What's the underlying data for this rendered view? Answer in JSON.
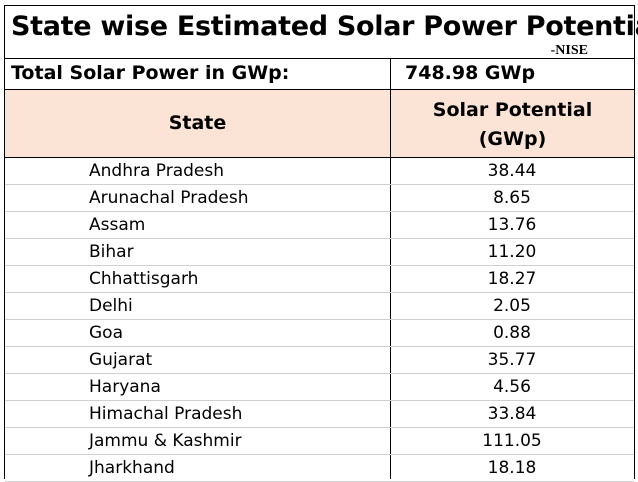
{
  "title": "State wise Estimated Solar Power Potential",
  "source": "-NISE",
  "total": {
    "label": "Total Solar Power  in GWp:",
    "value": "748.98 GWp"
  },
  "table": {
    "headers": {
      "state": "State",
      "potential_line1": "Solar Potential",
      "potential_line2": "(GWp)"
    },
    "rows": [
      {
        "state": "Andhra Pradesh",
        "potential": "38.44"
      },
      {
        "state": "Arunachal Pradesh",
        "potential": "8.65"
      },
      {
        "state": "Assam",
        "potential": "13.76"
      },
      {
        "state": "Bihar",
        "potential": "11.20"
      },
      {
        "state": "Chhattisgarh",
        "potential": "18.27"
      },
      {
        "state": "Delhi",
        "potential": "2.05"
      },
      {
        "state": "Goa",
        "potential": "0.88"
      },
      {
        "state": "Gujarat",
        "potential": "35.77"
      },
      {
        "state": "Haryana",
        "potential": "4.56"
      },
      {
        "state": "Himachal Pradesh",
        "potential": "33.84"
      },
      {
        "state": "Jammu & Kashmir",
        "potential": "111.05"
      },
      {
        "state": "Jharkhand",
        "potential": "18.18"
      }
    ]
  }
}
